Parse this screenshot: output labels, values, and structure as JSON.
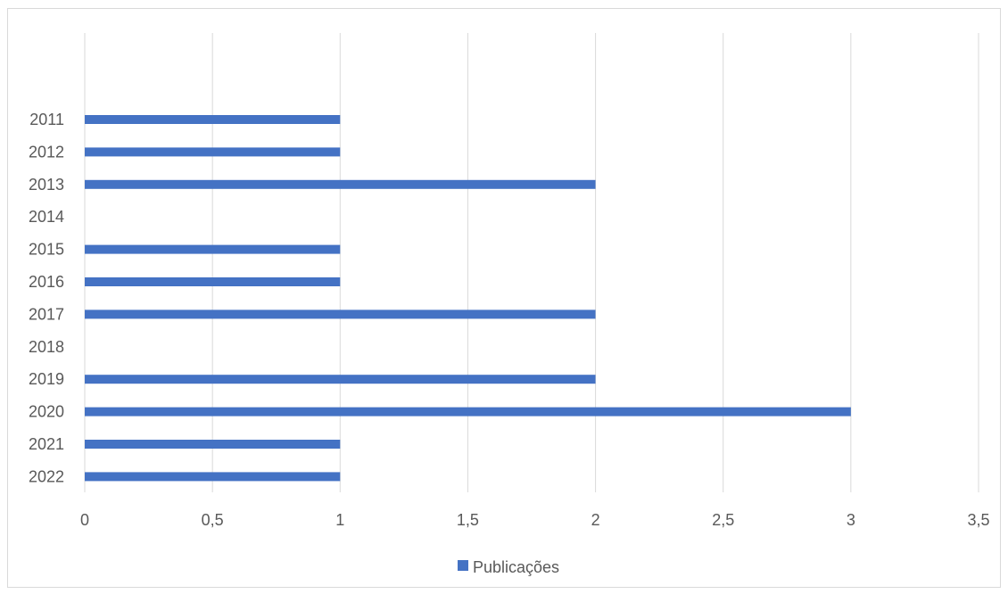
{
  "chart_data": {
    "type": "bar",
    "orientation": "horizontal",
    "title": "",
    "xlabel": "",
    "ylabel": "",
    "categories": [
      "2011",
      "2012",
      "2013",
      "2014",
      "2015",
      "2016",
      "2017",
      "2018",
      "2019",
      "2020",
      "2021",
      "2022"
    ],
    "series": [
      {
        "name": "Publicações",
        "color": "#4472c4",
        "values": [
          1,
          1,
          2,
          0,
          1,
          1,
          2,
          0,
          2,
          3,
          1,
          1
        ]
      }
    ],
    "xlim": [
      0,
      3.5
    ],
    "xticks": [
      0,
      0.5,
      1,
      1.5,
      2,
      2.5,
      3,
      3.5
    ],
    "xtick_labels": [
      "0",
      "0,5",
      "1",
      "1,5",
      "2",
      "2,5",
      "3",
      "3,5"
    ],
    "grid": "vertical",
    "gridline_color": "#d9d9d9",
    "legend": {
      "position": "bottom",
      "entries": [
        "Publicações"
      ]
    }
  }
}
